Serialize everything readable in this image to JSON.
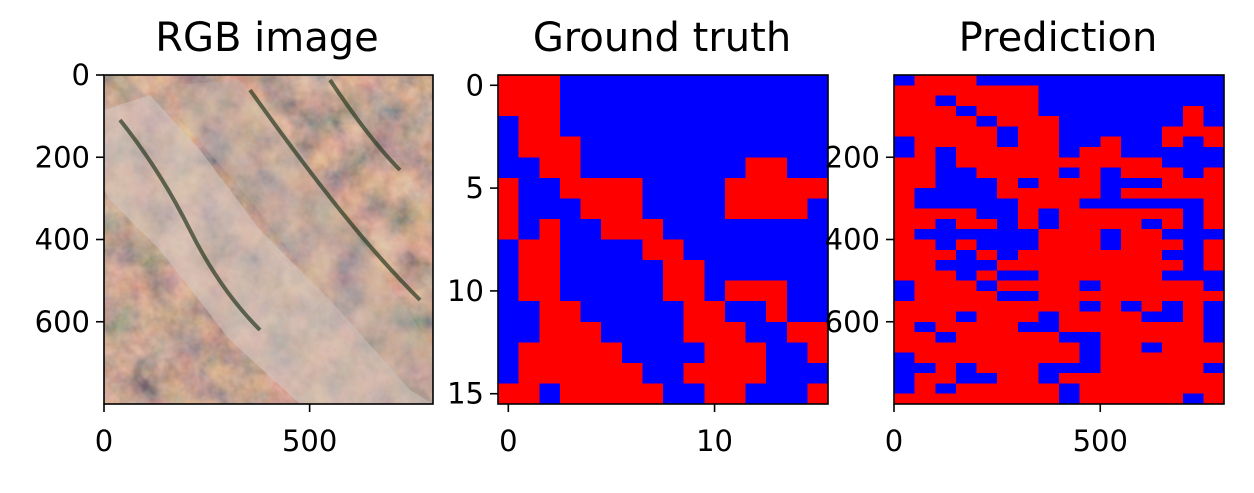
{
  "colors": {
    "class_1": "#ff0000",
    "class_0": "#0000ff",
    "frame": "#000000",
    "background": "#ffffff"
  },
  "chart_data": [
    {
      "type": "heatmap",
      "title": "RGB image",
      "xlim": [
        0,
        800
      ],
      "ylim": [
        800,
        0
      ],
      "xticks": [
        "0",
        "500"
      ],
      "yticks": [
        "0",
        "200",
        "400",
        "600"
      ],
      "xtick_values": [
        0,
        500
      ],
      "ytick_values": [
        0,
        200,
        400,
        600
      ],
      "image": "satellite-rgb-image"
    },
    {
      "type": "heatmap",
      "title": "Ground truth",
      "xlim": [
        -0.5,
        15.5
      ],
      "ylim": [
        15.5,
        -0.5
      ],
      "xticks": [
        "0",
        "10"
      ],
      "yticks": [
        "0",
        "5",
        "10",
        "15"
      ],
      "xtick_values": [
        0,
        10
      ],
      "ytick_values": [
        0,
        5,
        10,
        15
      ],
      "legend": {
        "1": "red",
        "0": "blue"
      },
      "grid": [
        "1110000000000000",
        "1110000000000000",
        "0110000000000000",
        "0111000000000000",
        "0011000000001100",
        "1001111000011111",
        "1000111000011110",
        "1010011100000000",
        "0110000110000000",
        "0110000011000000",
        "0110000011011100",
        "0011000001100100",
        "0011100001110011",
        "0111110000111001",
        "0111111001111000",
        "1101111100110001"
      ]
    },
    {
      "type": "heatmap",
      "title": "Prediction",
      "xlim": [
        0,
        800
      ],
      "ylim": [
        800,
        0
      ],
      "xticks": [
        "0",
        "500"
      ],
      "yticks": [
        "200",
        "400",
        "600"
      ],
      "xtick_values": [
        0,
        500
      ],
      "ytick_values": [
        200,
        400,
        600
      ],
      "legend": {
        "1": "red",
        "0": "blue"
      },
      "grid": [
        "0111000000000000",
        "1111111000000000",
        "1101111000000000",
        "1110111000000010",
        "1111011100000010",
        "1111101100000111",
        "0111101100100101",
        "0101111101100000",
        "1101111111111000",
        "1100111101011101",
        "1100010111000111",
        "1000011111011111",
        "1000001110000001",
        "1111001011111101",
        "1101101011110101",
        "1000000111011000",
        "1101000111011101",
        "1110101111111001",
        "1100011111111101",
        "1110100111111000",
        "0111011110111110",
        "0111100111111111",
        "1111111110101010",
        "1110111011110010",
        "1011110011111110",
        "1101111100111110",
        "1111111110110111",
        "0111111110111111",
        "0010111000111110",
        "0110011011111111",
        "0101111101111111",
        "1111111101111101"
      ]
    }
  ]
}
